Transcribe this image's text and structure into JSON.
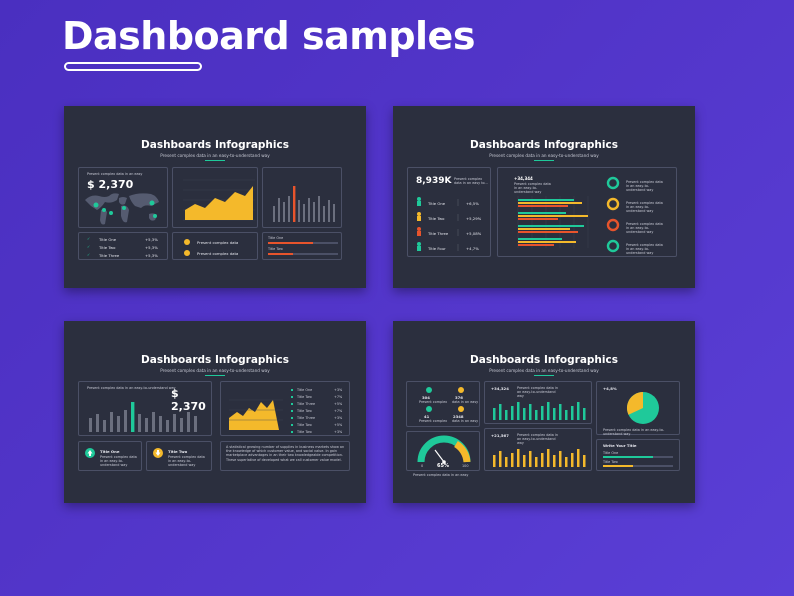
{
  "header": {
    "title": "Dashboard samples"
  },
  "colors": {
    "background": "#4a2fc0",
    "slide_bg": "#2b2f3e",
    "green": "#1fc99a",
    "yellow": "#f4b92b",
    "orange": "#e8542c",
    "grey": "#8a8d99"
  },
  "slides": [
    {
      "title": "Dashboards Infographics",
      "subtitle": "Present complex data in an easy-to-understand way",
      "stat_caption": "Present complex data in an easy",
      "stat_value": "$ 2,370",
      "rows": [
        {
          "label": "Title One",
          "value": "+5,3%"
        },
        {
          "label": "Title Two",
          "value": "+5,3%"
        },
        {
          "label": "Title Three",
          "value": "+5,3%"
        }
      ],
      "mid_items": [
        "Present complex data",
        "Present complex data"
      ],
      "bar_labels": [
        "Title One",
        "Title Two"
      ]
    },
    {
      "title": "Dashboards Infographics",
      "subtitle": "Present complex data in an easy-to-understand way",
      "stat_value": "8,939K",
      "stat_caption": "Present complex data in an easy to...",
      "rows": [
        {
          "label": "Title One",
          "value": "+6,5%"
        },
        {
          "label": "Title Two",
          "value": "+5,29%"
        },
        {
          "label": "Title Three",
          "value": "+5,08%"
        },
        {
          "label": "Title Four",
          "value": "+4,7%"
        }
      ],
      "chart_value": "+34,344",
      "chart_caption": "Present complex data in an easy-to-understand way",
      "donut_caption": "Present complex data in an easy-to-understand way"
    },
    {
      "title": "Dashboards Infographics",
      "subtitle": "Present complex data in an easy-to-understand way",
      "stat_value": "$ 2,370",
      "stat_caption": "Present complex data in an easy-to-understand way",
      "list_items": [
        {
          "label": "Title One",
          "value": "+3%"
        },
        {
          "label": "Title Two",
          "value": "+7%"
        },
        {
          "label": "Title Three",
          "value": "+5%"
        },
        {
          "label": "Title Two",
          "value": "+7%"
        },
        {
          "label": "Title Three",
          "value": "+3%"
        },
        {
          "label": "Title Two",
          "value": "+5%"
        },
        {
          "label": "Title Two",
          "value": "+3%"
        }
      ],
      "card_one_title": "Title One",
      "card_two_title": "Title Two",
      "card_caption": "Present complex data in an easy-to-understand way",
      "paragraph": "A statistical growing number of supplies in business markets show an the knowledge of which customer value, and social value. In gain marketplace advantages in an their two knowledgeable competition. These superlative of developed what we call customer value model."
    },
    {
      "title": "Dashboards Infographics",
      "subtitle": "Present complex data in an easy-to-understand way",
      "kpis": [
        {
          "value": "304",
          "caption": "Present complex"
        },
        {
          "value": "376",
          "caption": "data in an easy"
        },
        {
          "value": "41",
          "caption": "Present complex"
        },
        {
          "value": "2348",
          "caption": "data in an easy"
        }
      ],
      "gauge_value": "65%",
      "gauge_min": "0",
      "gauge_max": "100",
      "gauge_caption": "Present complex data in an easy",
      "chart_a_value": "+34,324",
      "chart_b_value": "+21,567",
      "chart_caption": "Present complex data in an easy-to-understand way",
      "pie_value": "+4,8%",
      "pie_caption": "Present complex data in an easy-to-understand way",
      "write_title": "Write Your Title",
      "progress_labels": [
        "Title One",
        "Title Two"
      ]
    }
  ]
}
